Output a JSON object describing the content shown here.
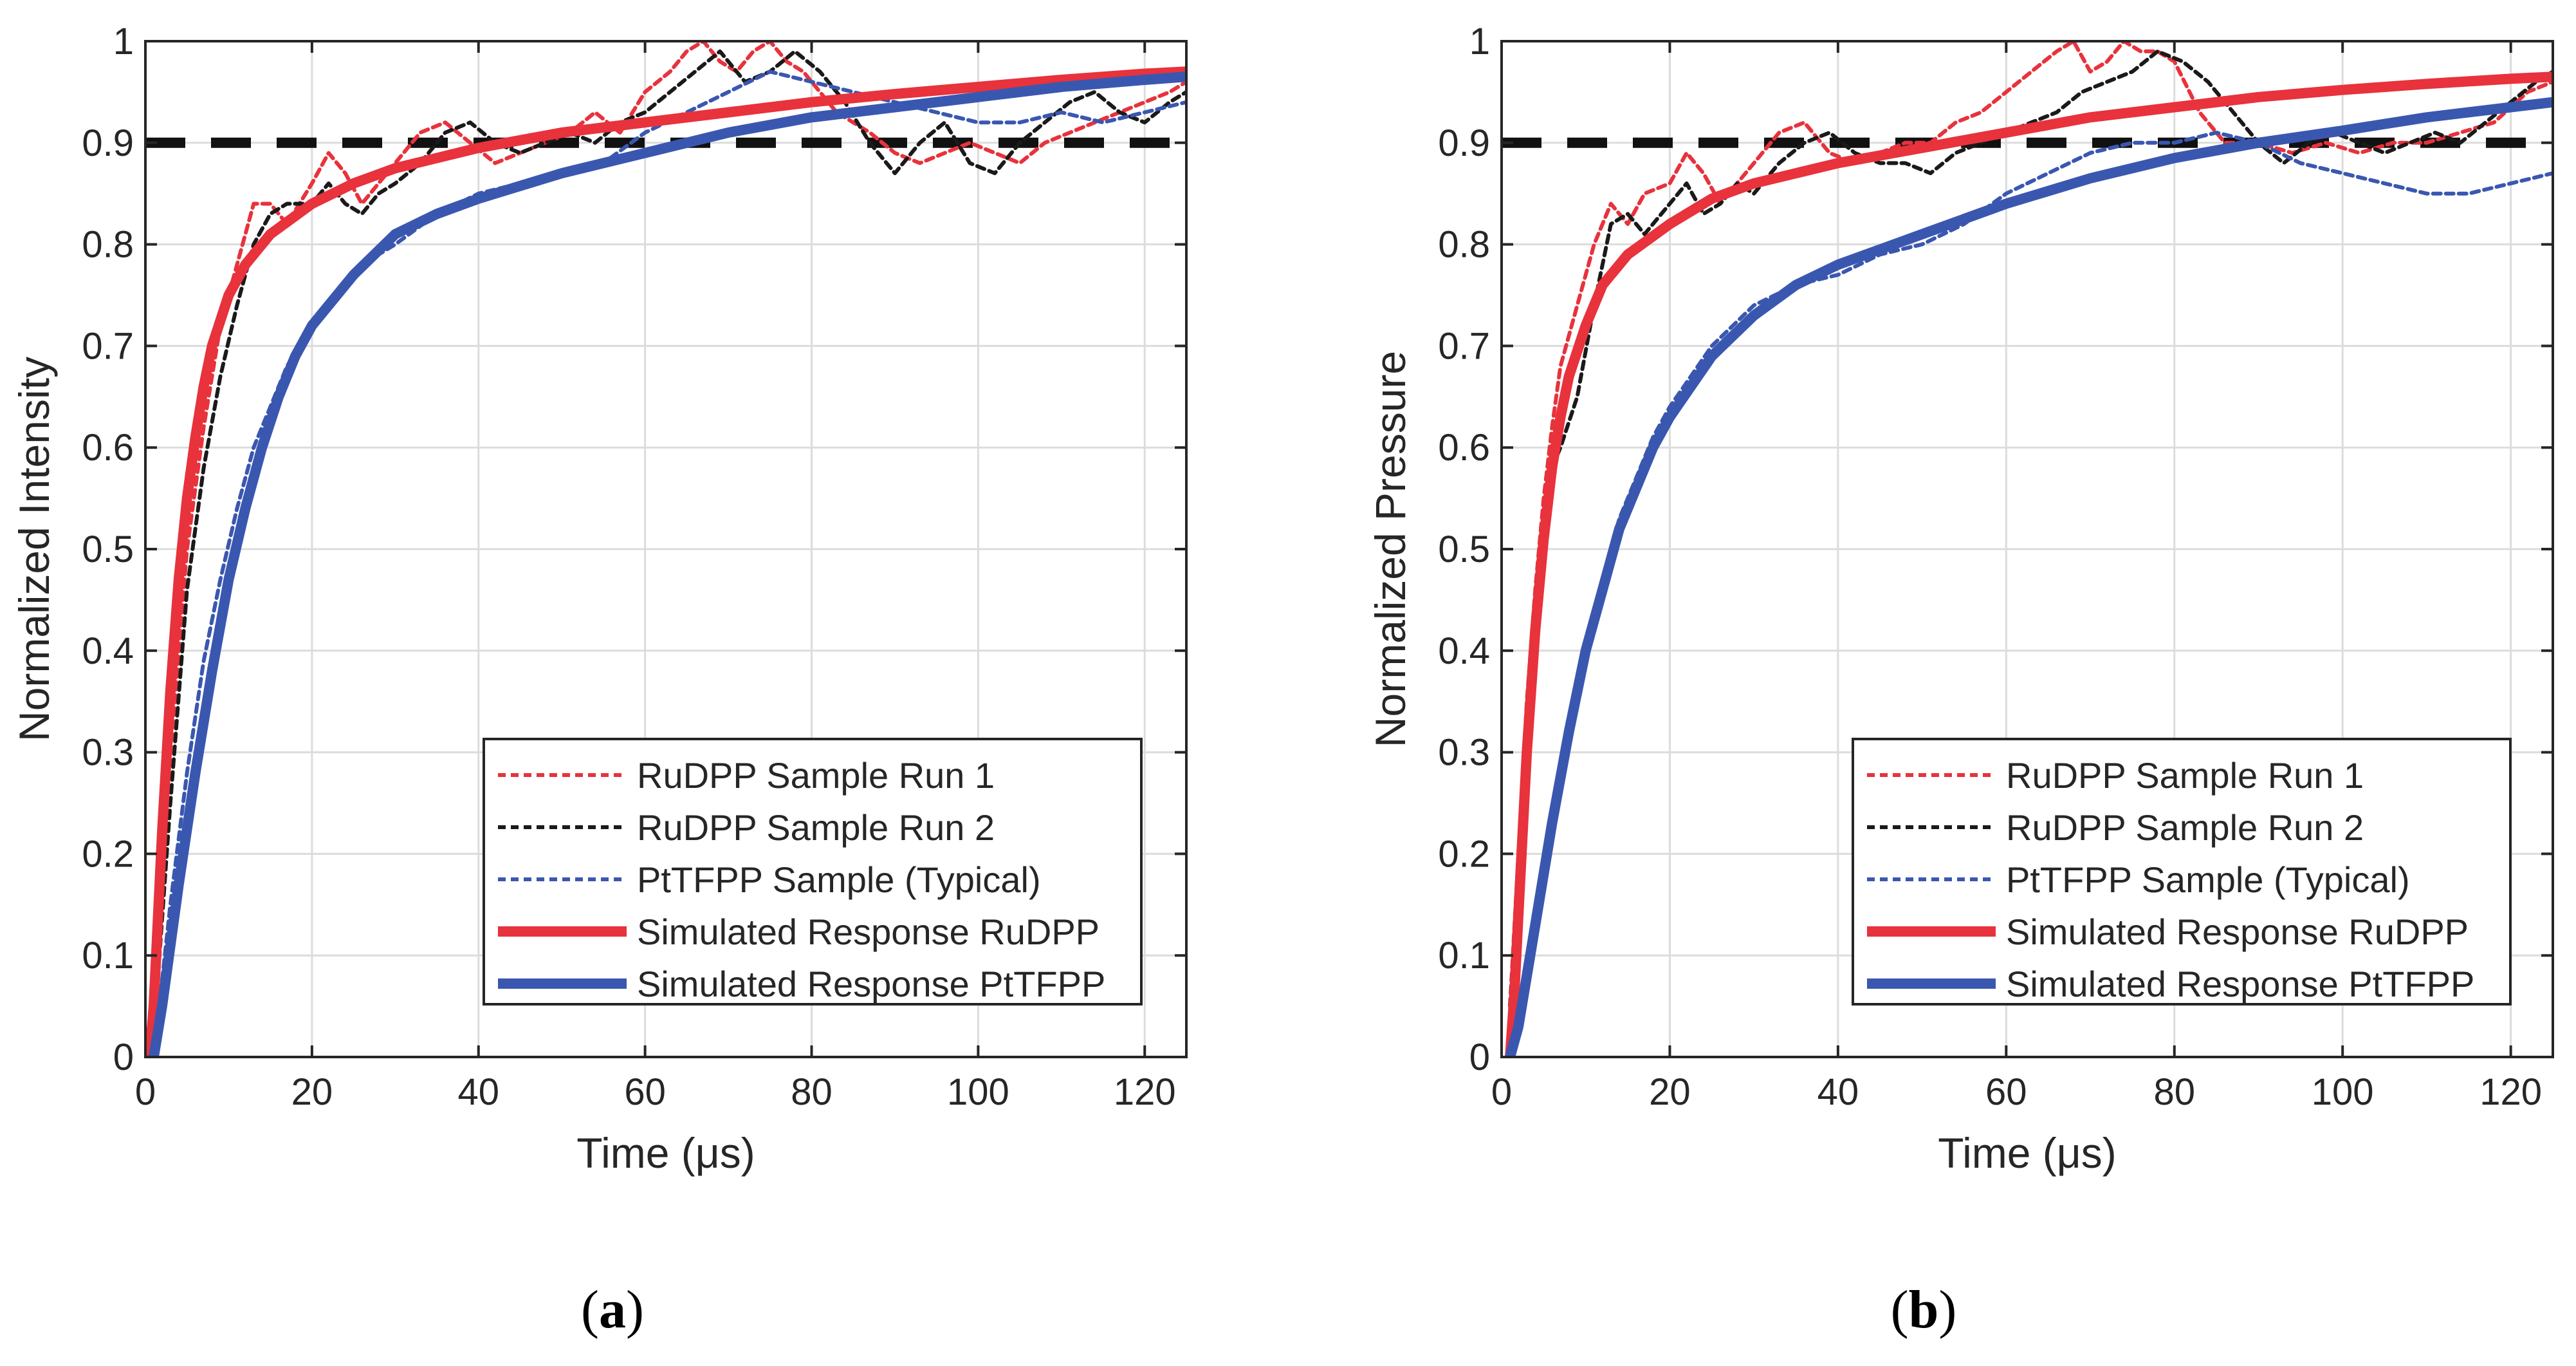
{
  "figure": {
    "panel_a_label": "(a)",
    "panel_b_label": "(b)",
    "letter_a": "a",
    "letter_b": "b"
  },
  "legend_entries": [
    "RuDPP Sample Run 1",
    "RuDPP Sample Run 2",
    "PtTFPP Sample (Typical)",
    "Simulated Response RuDPP",
    "Simulated Response PtTFPP"
  ],
  "colors": {
    "red": "#e8323c",
    "black": "#1a1a1a",
    "blue": "#3a57b0",
    "reference": "#111111",
    "grid": "#dcdcdc"
  },
  "chart_data": [
    {
      "id": "a",
      "type": "line",
      "title": "",
      "xlabel": "Time (μs)",
      "ylabel": "Normalized Intensity",
      "xlim": [
        0,
        125
      ],
      "ylim": [
        0,
        1
      ],
      "xticks": [
        0,
        20,
        40,
        60,
        80,
        100,
        120
      ],
      "yticks": [
        0,
        0.1,
        0.2,
        0.3,
        0.4,
        0.5,
        0.6,
        0.7,
        0.8,
        0.9,
        1
      ],
      "ytick_labels": [
        "0",
        "0.1",
        "0.2",
        "0.3",
        "0.4",
        "0.5",
        "0.6",
        "0.7",
        "0.8",
        "0.9",
        "1"
      ],
      "grid": true,
      "legend_position": "lower-right",
      "reference_line": {
        "y": 0.9,
        "style": "dashed"
      },
      "series": [
        {
          "name": "RuDPP Sample Run 1",
          "style": "dotted",
          "color": "red",
          "x": [
            1,
            3,
            5,
            7,
            9,
            11,
            13,
            15,
            17,
            20,
            22,
            24,
            26,
            28,
            30,
            33,
            36,
            39,
            42,
            45,
            48,
            51,
            54,
            57,
            60,
            63,
            65,
            67,
            69,
            71,
            73,
            75,
            77,
            79,
            81,
            83,
            85,
            87,
            90,
            93,
            96,
            99,
            102,
            105,
            108,
            111,
            114,
            117,
            120,
            123,
            125
          ],
          "y": [
            0.02,
            0.3,
            0.5,
            0.62,
            0.72,
            0.78,
            0.84,
            0.84,
            0.82,
            0.86,
            0.89,
            0.87,
            0.84,
            0.86,
            0.88,
            0.91,
            0.92,
            0.9,
            0.88,
            0.89,
            0.9,
            0.91,
            0.93,
            0.91,
            0.95,
            0.97,
            0.99,
            1.0,
            0.98,
            0.97,
            0.99,
            1.0,
            0.98,
            0.97,
            0.95,
            0.93,
            0.92,
            0.91,
            0.89,
            0.88,
            0.89,
            0.9,
            0.89,
            0.88,
            0.9,
            0.91,
            0.92,
            0.93,
            0.94,
            0.95,
            0.96
          ]
        },
        {
          "name": "RuDPP Sample Run 2",
          "style": "dotted",
          "color": "black",
          "x": [
            1,
            3,
            5,
            7,
            9,
            11,
            13,
            15,
            17,
            20,
            22,
            24,
            26,
            28,
            30,
            33,
            36,
            39,
            42,
            45,
            48,
            51,
            54,
            57,
            60,
            63,
            66,
            69,
            72,
            75,
            78,
            81,
            84,
            87,
            90,
            93,
            96,
            99,
            102,
            105,
            108,
            111,
            114,
            117,
            120,
            123,
            125
          ],
          "y": [
            0.02,
            0.25,
            0.46,
            0.58,
            0.67,
            0.74,
            0.8,
            0.83,
            0.84,
            0.84,
            0.86,
            0.84,
            0.83,
            0.85,
            0.86,
            0.88,
            0.91,
            0.92,
            0.9,
            0.89,
            0.9,
            0.91,
            0.9,
            0.92,
            0.93,
            0.95,
            0.97,
            0.99,
            0.96,
            0.97,
            0.99,
            0.97,
            0.94,
            0.9,
            0.87,
            0.9,
            0.92,
            0.88,
            0.87,
            0.9,
            0.92,
            0.94,
            0.95,
            0.93,
            0.92,
            0.94,
            0.95
          ]
        },
        {
          "name": "PtTFPP Sample (Typical)",
          "style": "dotted",
          "color": "blue",
          "x": [
            1,
            3,
            5,
            7,
            9,
            11,
            13,
            15,
            17,
            20,
            23,
            26,
            30,
            35,
            40,
            45,
            50,
            55,
            60,
            65,
            70,
            75,
            80,
            85,
            90,
            95,
            100,
            105,
            110,
            115,
            120,
            125
          ],
          "y": [
            0.0,
            0.15,
            0.28,
            0.39,
            0.47,
            0.54,
            0.6,
            0.64,
            0.68,
            0.72,
            0.75,
            0.78,
            0.8,
            0.83,
            0.85,
            0.86,
            0.87,
            0.88,
            0.91,
            0.93,
            0.95,
            0.97,
            0.96,
            0.95,
            0.94,
            0.93,
            0.92,
            0.92,
            0.93,
            0.92,
            0.93,
            0.94
          ]
        },
        {
          "name": "Simulated Response RuDPP",
          "style": "solid",
          "color": "red",
          "x": [
            0.5,
            1,
            2,
            3,
            4,
            5,
            6,
            7,
            8,
            10,
            12,
            15,
            20,
            25,
            30,
            35,
            40,
            50,
            60,
            70,
            80,
            90,
            100,
            110,
            120,
            125
          ],
          "y": [
            0.0,
            0.05,
            0.22,
            0.36,
            0.47,
            0.55,
            0.61,
            0.66,
            0.7,
            0.75,
            0.78,
            0.81,
            0.84,
            0.86,
            0.875,
            0.885,
            0.895,
            0.91,
            0.92,
            0.93,
            0.94,
            0.948,
            0.955,
            0.962,
            0.968,
            0.97
          ]
        },
        {
          "name": "Simulated Response PtTFPP",
          "style": "solid",
          "color": "blue",
          "x": [
            1,
            2,
            4,
            6,
            8,
            10,
            12,
            14,
            16,
            18,
            20,
            25,
            30,
            35,
            40,
            50,
            60,
            70,
            80,
            90,
            100,
            110,
            120,
            125
          ],
          "y": [
            0.0,
            0.05,
            0.17,
            0.28,
            0.38,
            0.47,
            0.54,
            0.6,
            0.65,
            0.69,
            0.72,
            0.77,
            0.81,
            0.83,
            0.845,
            0.87,
            0.89,
            0.91,
            0.925,
            0.935,
            0.945,
            0.955,
            0.962,
            0.965
          ]
        }
      ]
    },
    {
      "id": "b",
      "type": "line",
      "title": "",
      "xlabel": "Time (μs)",
      "ylabel": "Normalized Pressure",
      "xlim": [
        0,
        125
      ],
      "ylim": [
        0,
        1
      ],
      "xticks": [
        0,
        20,
        40,
        60,
        80,
        100,
        120
      ],
      "yticks": [
        0,
        0.1,
        0.2,
        0.3,
        0.4,
        0.5,
        0.6,
        0.7,
        0.8,
        0.9,
        1
      ],
      "ytick_labels": [
        "0",
        "0.1",
        "0.2",
        "0.3",
        "0.4",
        "0.5",
        "0.6",
        "0.7",
        "0.8",
        "0.9",
        "1"
      ],
      "grid": true,
      "legend_position": "lower-right",
      "reference_line": {
        "y": 0.9,
        "style": "dashed"
      },
      "series": [
        {
          "name": "RuDPP Sample Run 1",
          "style": "dotted",
          "color": "red",
          "x": [
            1,
            2,
            3,
            4,
            5,
            6,
            7,
            9,
            11,
            13,
            15,
            17,
            20,
            22,
            24,
            26,
            28,
            30,
            33,
            36,
            39,
            42,
            45,
            48,
            51,
            54,
            57,
            60,
            63,
            66,
            68,
            70,
            72,
            74,
            76,
            78,
            80,
            83,
            86,
            90,
            94,
            98,
            102,
            106,
            110,
            114,
            118,
            122,
            125
          ],
          "y": [
            0.05,
            0.2,
            0.35,
            0.46,
            0.55,
            0.62,
            0.68,
            0.74,
            0.8,
            0.84,
            0.82,
            0.85,
            0.86,
            0.89,
            0.87,
            0.84,
            0.86,
            0.88,
            0.91,
            0.92,
            0.89,
            0.88,
            0.89,
            0.9,
            0.9,
            0.92,
            0.93,
            0.95,
            0.97,
            0.99,
            1.0,
            0.97,
            0.98,
            1.0,
            0.99,
            0.99,
            0.98,
            0.93,
            0.9,
            0.9,
            0.89,
            0.9,
            0.89,
            0.9,
            0.9,
            0.91,
            0.92,
            0.95,
            0.96
          ]
        },
        {
          "name": "RuDPP Sample Run 2",
          "style": "dotted",
          "color": "black",
          "x": [
            1,
            2,
            3,
            4,
            5,
            6,
            7,
            9,
            11,
            13,
            15,
            17,
            20,
            22,
            24,
            26,
            28,
            30,
            33,
            36,
            39,
            42,
            45,
            48,
            51,
            54,
            57,
            60,
            63,
            66,
            69,
            72,
            75,
            78,
            81,
            84,
            87,
            90,
            93,
            96,
            99,
            102,
            105,
            108,
            111,
            114,
            117,
            120,
            123,
            125
          ],
          "y": [
            0.05,
            0.18,
            0.32,
            0.43,
            0.52,
            0.58,
            0.6,
            0.65,
            0.74,
            0.82,
            0.83,
            0.81,
            0.84,
            0.86,
            0.83,
            0.84,
            0.86,
            0.85,
            0.88,
            0.9,
            0.91,
            0.89,
            0.88,
            0.88,
            0.87,
            0.89,
            0.9,
            0.91,
            0.92,
            0.93,
            0.95,
            0.96,
            0.97,
            0.99,
            0.98,
            0.96,
            0.93,
            0.9,
            0.88,
            0.9,
            0.91,
            0.9,
            0.89,
            0.9,
            0.91,
            0.9,
            0.92,
            0.94,
            0.96,
            0.97
          ]
        },
        {
          "name": "PtTFPP Sample (Typical)",
          "style": "dotted",
          "color": "blue",
          "x": [
            1,
            2,
            4,
            6,
            8,
            10,
            12,
            14,
            16,
            18,
            20,
            25,
            30,
            35,
            40,
            45,
            50,
            55,
            60,
            65,
            70,
            75,
            80,
            85,
            90,
            95,
            100,
            105,
            110,
            115,
            120,
            125
          ],
          "y": [
            0.0,
            0.04,
            0.14,
            0.24,
            0.33,
            0.41,
            0.47,
            0.53,
            0.57,
            0.61,
            0.64,
            0.7,
            0.74,
            0.76,
            0.77,
            0.79,
            0.8,
            0.82,
            0.85,
            0.87,
            0.89,
            0.9,
            0.9,
            0.91,
            0.9,
            0.88,
            0.87,
            0.86,
            0.85,
            0.85,
            0.86,
            0.87
          ]
        },
        {
          "name": "Simulated Response RuDPP",
          "style": "solid",
          "color": "red",
          "x": [
            1,
            1.5,
            2,
            3,
            4,
            5,
            6,
            7,
            8,
            10,
            12,
            15,
            20,
            25,
            30,
            35,
            40,
            50,
            60,
            70,
            80,
            90,
            100,
            110,
            120,
            125
          ],
          "y": [
            0.0,
            0.06,
            0.14,
            0.3,
            0.42,
            0.51,
            0.58,
            0.63,
            0.67,
            0.72,
            0.76,
            0.79,
            0.82,
            0.845,
            0.86,
            0.87,
            0.88,
            0.895,
            0.91,
            0.925,
            0.935,
            0.945,
            0.952,
            0.958,
            0.963,
            0.965
          ]
        },
        {
          "name": "Simulated Response PtTFPP",
          "style": "solid",
          "color": "blue",
          "x": [
            1,
            2,
            3,
            4,
            6,
            8,
            10,
            12,
            14,
            16,
            18,
            20,
            25,
            30,
            35,
            40,
            50,
            60,
            70,
            80,
            90,
            100,
            110,
            120,
            125
          ],
          "y": [
            0.0,
            0.03,
            0.08,
            0.13,
            0.23,
            0.32,
            0.4,
            0.46,
            0.52,
            0.56,
            0.6,
            0.63,
            0.69,
            0.73,
            0.76,
            0.78,
            0.81,
            0.84,
            0.865,
            0.885,
            0.9,
            0.912,
            0.925,
            0.935,
            0.94
          ]
        }
      ]
    }
  ]
}
